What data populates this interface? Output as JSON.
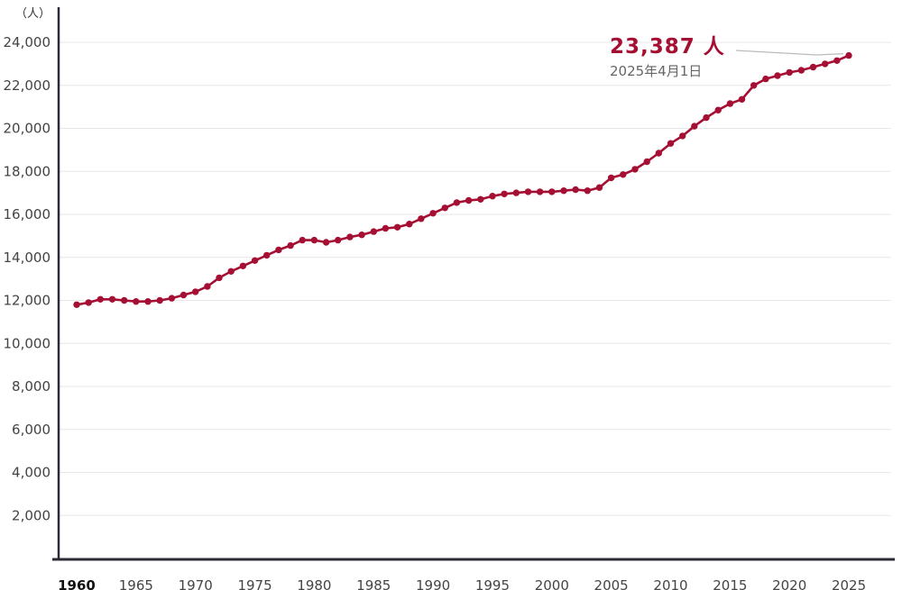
{
  "chart_data": {
    "type": "line",
    "title": "",
    "unit_label": "（人）",
    "x": [
      1960,
      1961,
      1962,
      1963,
      1964,
      1965,
      1966,
      1967,
      1968,
      1969,
      1970,
      1971,
      1972,
      1973,
      1974,
      1975,
      1976,
      1977,
      1978,
      1979,
      1980,
      1981,
      1982,
      1983,
      1984,
      1985,
      1986,
      1987,
      1988,
      1989,
      1990,
      1991,
      1992,
      1993,
      1994,
      1995,
      1996,
      1997,
      1998,
      1999,
      2000,
      2001,
      2002,
      2003,
      2004,
      2005,
      2006,
      2007,
      2008,
      2009,
      2010,
      2011,
      2012,
      2013,
      2014,
      2015,
      2016,
      2017,
      2018,
      2019,
      2020,
      2021,
      2022,
      2023,
      2024,
      2025
    ],
    "values": [
      11800,
      11900,
      12050,
      12050,
      12000,
      11950,
      11950,
      12000,
      12100,
      12250,
      12400,
      12650,
      13050,
      13350,
      13600,
      13850,
      14100,
      14350,
      14550,
      14800,
      14800,
      14700,
      14800,
      14950,
      15050,
      15200,
      15350,
      15400,
      15550,
      15800,
      16050,
      16300,
      16550,
      16650,
      16700,
      16850,
      16950,
      17000,
      17050,
      17050,
      17050,
      17100,
      17150,
      17100,
      17250,
      17700,
      17850,
      18100,
      18450,
      18850,
      19300,
      19650,
      20100,
      20500,
      20850,
      21150,
      21350,
      22000,
      22300,
      22450,
      22600,
      22700,
      22850,
      23000,
      23150,
      23387
    ],
    "x_tick_years": [
      1960,
      1965,
      1970,
      1975,
      1980,
      1985,
      1990,
      1995,
      2000,
      2005,
      2010,
      2015,
      2020,
      2025
    ],
    "y_ticks": [
      2000,
      4000,
      6000,
      8000,
      10000,
      12000,
      14000,
      16000,
      18000,
      20000,
      22000,
      24000
    ],
    "ylim": [
      0,
      24000
    ],
    "xlim": [
      1960,
      2025
    ],
    "grid": true,
    "legend": "none",
    "line_color": "#a50f33",
    "dot_color": "#a50f33",
    "axis_color": "#2b2b35",
    "grid_color": "#e7e7e7",
    "tick_label_color": "#444444",
    "first_x_tick_bold": true,
    "annotation": {
      "value_label": "23,387 人",
      "date_label": "2025年4月1日",
      "value_color": "#a50f33",
      "leader_color": "#bbbbbb"
    }
  }
}
